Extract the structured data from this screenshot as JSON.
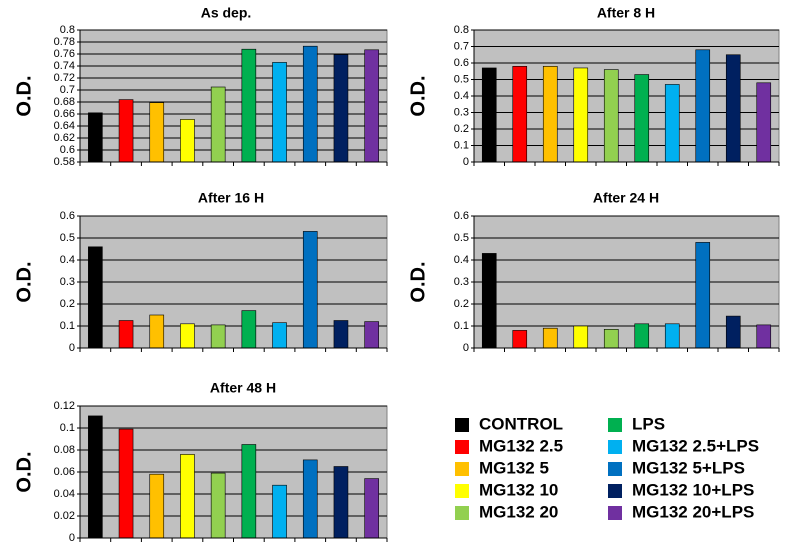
{
  "chart_data": [
    {
      "type": "bar",
      "title": "As dep.",
      "y_label": "O.D.",
      "values": [
        0.662,
        0.684,
        0.679,
        0.651,
        0.705,
        0.768,
        0.746,
        0.773,
        0.759,
        0.767
      ],
      "ylim": [
        0.58,
        0.8
      ],
      "yticks": [
        0.58,
        0.6,
        0.62,
        0.64,
        0.66,
        0.68,
        0.7,
        0.72,
        0.74,
        0.76,
        0.78,
        0.8
      ],
      "grid": true
    },
    {
      "type": "bar",
      "title": "After 8 H",
      "y_label": "O.D.",
      "values": [
        0.57,
        0.58,
        0.58,
        0.57,
        0.56,
        0.53,
        0.47,
        0.68,
        0.65,
        0.48
      ],
      "ylim": [
        0,
        0.8
      ],
      "yticks": [
        0,
        0.1,
        0.2,
        0.3,
        0.4,
        0.5,
        0.6,
        0.7,
        0.8
      ],
      "grid": true
    },
    {
      "type": "bar",
      "title": "After 16 H",
      "y_label": "O.D.",
      "values": [
        0.46,
        0.125,
        0.15,
        0.11,
        0.105,
        0.17,
        0.115,
        0.53,
        0.125,
        0.12
      ],
      "ylim": [
        0,
        0.6
      ],
      "yticks": [
        0,
        0.1,
        0.2,
        0.3,
        0.4,
        0.5,
        0.6
      ],
      "grid": true
    },
    {
      "type": "bar",
      "title": "After 24 H",
      "y_label": "O.D.",
      "values": [
        0.43,
        0.08,
        0.09,
        0.1,
        0.085,
        0.11,
        0.11,
        0.48,
        0.145,
        0.105
      ],
      "ylim": [
        0,
        0.6
      ],
      "yticks": [
        0,
        0.1,
        0.2,
        0.3,
        0.4,
        0.5,
        0.6
      ],
      "grid": true
    },
    {
      "type": "bar",
      "title": "After 48 H",
      "y_label": "O.D.",
      "values": [
        0.111,
        0.099,
        0.058,
        0.076,
        0.059,
        0.085,
        0.048,
        0.071,
        0.065,
        0.054
      ],
      "ylim": [
        0,
        0.12
      ],
      "yticks": [
        0,
        0.02,
        0.04,
        0.06,
        0.08,
        0.1,
        0.12
      ],
      "grid": true
    }
  ],
  "legend": {
    "items": [
      {
        "name": "CONTROL",
        "color": "#000000"
      },
      {
        "name": "MG132 2.5",
        "color": "#ff0000"
      },
      {
        "name": "MG132 5",
        "color": "#ffc000"
      },
      {
        "name": "MG132 10",
        "color": "#ffff00"
      },
      {
        "name": "MG132 20",
        "color": "#92d050"
      },
      {
        "name": "LPS",
        "color": "#00b050"
      },
      {
        "name": "MG132 2.5+LPS",
        "color": "#00b0f0"
      },
      {
        "name": "MG132 5+LPS",
        "color": "#0070c0"
      },
      {
        "name": "MG132 10+LPS",
        "color": "#002060"
      },
      {
        "name": "MG132 20+LPS",
        "color": "#7030a0"
      }
    ]
  }
}
